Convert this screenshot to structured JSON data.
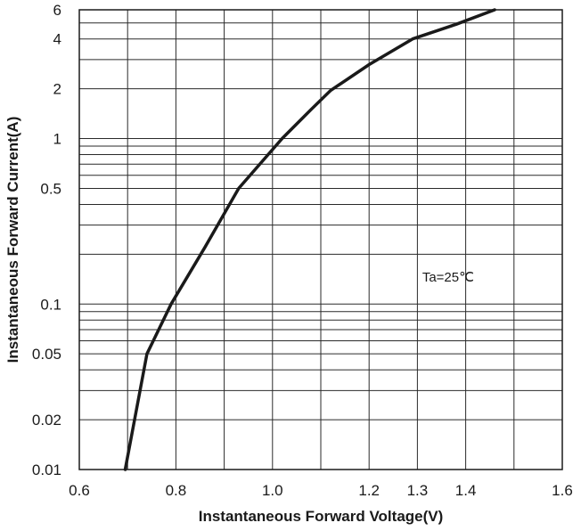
{
  "chart_data": {
    "type": "line",
    "title": "",
    "xlabel": "Instantaneous Forward Voltage(V)",
    "ylabel": "Instantaneous Forward Current(A)",
    "x_scale": "linear",
    "y_scale": "log",
    "xlim": [
      0.6,
      1.6
    ],
    "ylim": [
      0.01,
      6
    ],
    "grid": true,
    "x_gridlines": [
      0.6,
      0.7,
      0.8,
      0.9,
      1.0,
      1.1,
      1.2,
      1.3,
      1.4,
      1.5,
      1.6
    ],
    "y_gridlines": [
      0.01,
      0.02,
      0.03,
      0.04,
      0.05,
      0.06,
      0.07,
      0.08,
      0.09,
      0.1,
      0.2,
      0.3,
      0.4,
      0.5,
      0.6,
      0.7,
      0.8,
      0.9,
      1,
      2,
      3,
      4,
      5,
      6
    ],
    "x_ticks": [
      {
        "value": 0.6,
        "label": "0.6"
      },
      {
        "value": 0.8,
        "label": "0.8"
      },
      {
        "value": 1.0,
        "label": "1.0"
      },
      {
        "value": 1.2,
        "label": "1.2"
      },
      {
        "value": 1.3,
        "label": "1.3"
      },
      {
        "value": 1.4,
        "label": "1.4"
      },
      {
        "value": 1.6,
        "label": "1.6"
      }
    ],
    "y_ticks": [
      {
        "value": 0.01,
        "label": "0.01"
      },
      {
        "value": 0.02,
        "label": "0.02"
      },
      {
        "value": 0.05,
        "label": "0.05"
      },
      {
        "value": 0.1,
        "label": "0.1"
      },
      {
        "value": 0.5,
        "label": "0.5"
      },
      {
        "value": 1,
        "label": "1"
      },
      {
        "value": 2,
        "label": "2"
      },
      {
        "value": 4,
        "label": "4"
      },
      {
        "value": 6,
        "label": "6"
      }
    ],
    "series": [
      {
        "color": "#1a1a1a",
        "x": [
          0.695,
          0.74,
          0.79,
          0.86,
          0.93,
          1.02,
          1.08,
          1.12,
          1.2,
          1.29,
          1.38,
          1.46
        ],
        "y": [
          0.01,
          0.05,
          0.1,
          0.22,
          0.5,
          1.0,
          1.5,
          1.95,
          2.8,
          4.0,
          4.9,
          6.0
        ]
      }
    ],
    "annotations": [
      {
        "text": "Ta=25℃",
        "x": 1.31,
        "y": 0.137
      }
    ]
  }
}
